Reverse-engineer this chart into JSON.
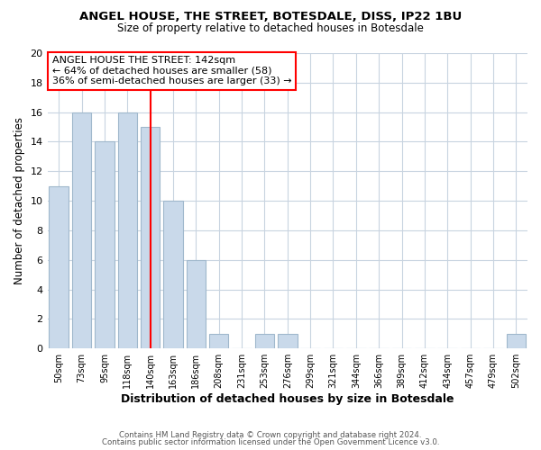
{
  "title": "ANGEL HOUSE, THE STREET, BOTESDALE, DISS, IP22 1BU",
  "subtitle": "Size of property relative to detached houses in Botesdale",
  "xlabel": "Distribution of detached houses by size in Botesdale",
  "ylabel": "Number of detached properties",
  "bar_labels": [
    "50sqm",
    "73sqm",
    "95sqm",
    "118sqm",
    "140sqm",
    "163sqm",
    "186sqm",
    "208sqm",
    "231sqm",
    "253sqm",
    "276sqm",
    "299sqm",
    "321sqm",
    "344sqm",
    "366sqm",
    "389sqm",
    "412sqm",
    "434sqm",
    "457sqm",
    "479sqm",
    "502sqm"
  ],
  "bar_values": [
    11,
    16,
    14,
    16,
    15,
    10,
    6,
    1,
    0,
    1,
    1,
    0,
    0,
    0,
    0,
    0,
    0,
    0,
    0,
    0,
    1
  ],
  "bar_color": "#c9d9ea",
  "bar_edge_color": "#a0b8cc",
  "grid_color": "#c8d4e0",
  "background_color": "#ffffff",
  "plot_bg_color": "#ffffff",
  "vline_x_index": 4,
  "vline_color": "red",
  "annotation_text": "ANGEL HOUSE THE STREET: 142sqm\n← 64% of detached houses are smaller (58)\n36% of semi-detached houses are larger (33) →",
  "annotation_box_color": "white",
  "annotation_box_edge": "red",
  "ylim": [
    0,
    20
  ],
  "yticks": [
    0,
    2,
    4,
    6,
    8,
    10,
    12,
    14,
    16,
    18,
    20
  ],
  "footer_line1": "Contains HM Land Registry data © Crown copyright and database right 2024.",
  "footer_line2": "Contains public sector information licensed under the Open Government Licence v3.0."
}
